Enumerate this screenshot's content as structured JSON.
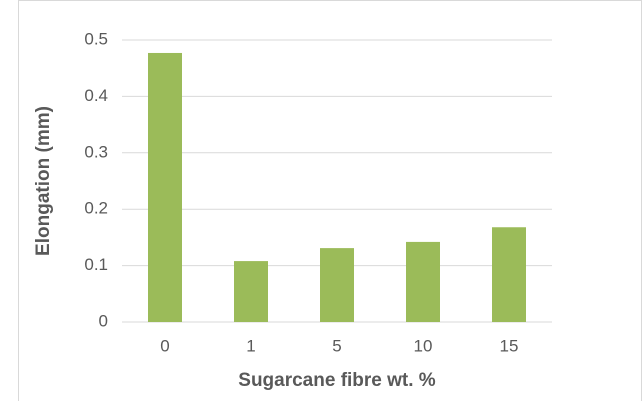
{
  "chart_data": {
    "type": "bar",
    "x_label": "Sugarcane fibre wt. %",
    "y_label": "Elongation (mm)",
    "categories": [
      "0",
      "1",
      "5",
      "10",
      "15"
    ],
    "values": [
      0.477,
      0.108,
      0.131,
      0.142,
      0.168
    ],
    "color": "#9bbb59",
    "ylim": [
      0,
      0.5
    ],
    "yticks": [
      0,
      0.1,
      0.2,
      0.3,
      0.4,
      0.5
    ],
    "grid": true
  }
}
